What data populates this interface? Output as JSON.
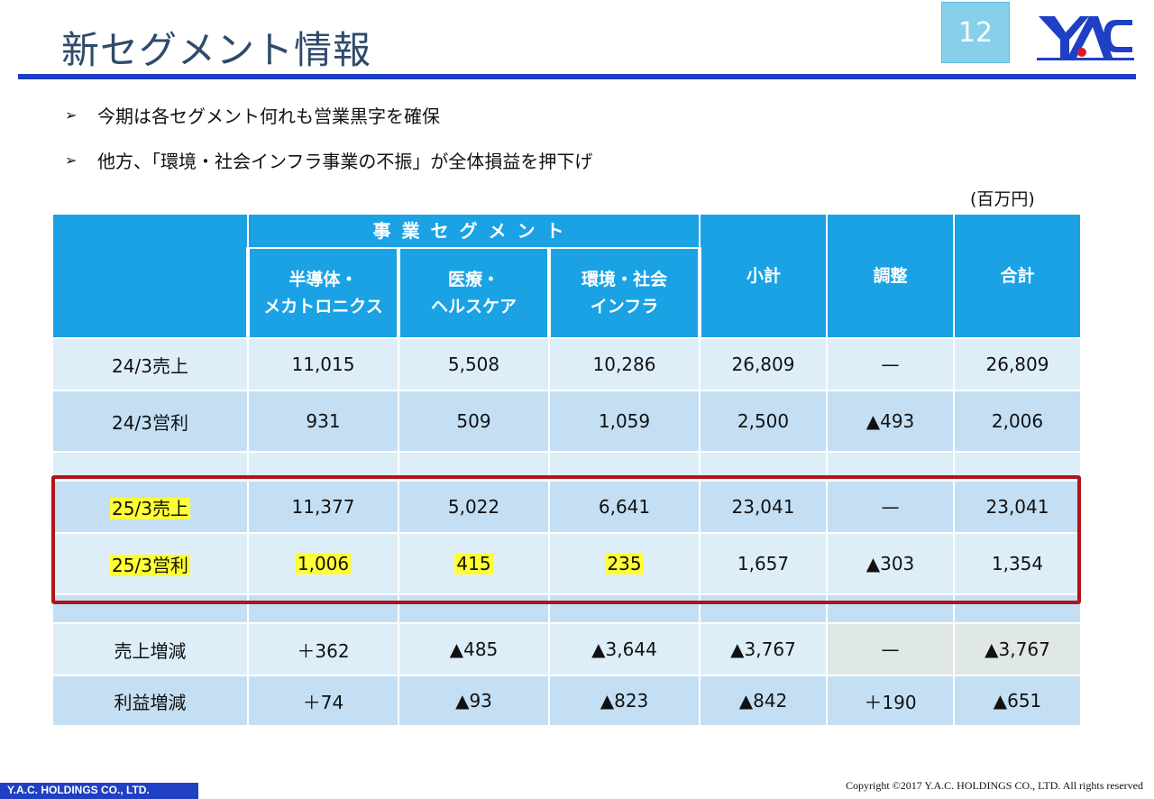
{
  "header": {
    "title": "新セグメント情報",
    "page_number": "12"
  },
  "bullets": [
    {
      "mark": "➢",
      "text": "今期は各セグメント何れも営業黒字を確保"
    },
    {
      "mark": "➢",
      "text": "他方、「環境・社会インフラ事業の不振」が全体損益を押下げ"
    }
  ],
  "table": {
    "unit": "(百万円)",
    "group_header": "事業セグメント",
    "segments": [
      {
        "line1": "半導体・",
        "line2": "メカトロニクス"
      },
      {
        "line1": "医療・",
        "line2": "ヘルスケア"
      },
      {
        "line1": "環境・社会",
        "line2": "インフラ"
      }
    ],
    "subtotal": "小計",
    "adjust": "調整",
    "total": "合計",
    "rows": {
      "sales24": {
        "label": "24/3売上",
        "c1": "11,015",
        "c2": "5,508",
        "c3": "10,286",
        "c4": "26,809",
        "c5": "—",
        "c6": "26,809"
      },
      "op24": {
        "label": "24/3営利",
        "c1": "931",
        "c2": "509",
        "c3": "1,059",
        "c4": "2,500",
        "c5": "▲493",
        "c6": "2,006"
      },
      "sales25": {
        "label": "25/3売上",
        "c1": "11,377",
        "c2": "5,022",
        "c3": "6,641",
        "c4": "23,041",
        "c5": "—",
        "c6": "23,041"
      },
      "op25": {
        "label": "25/3営利",
        "c1": "1,006",
        "c2": "415",
        "c3": "235",
        "c4": "1,657",
        "c5": "▲303",
        "c6": "1,354"
      },
      "salesdiff": {
        "label": "売上増減",
        "c1": "＋362",
        "c2": "▲485",
        "c3": "▲3,644",
        "c4": "▲3,767",
        "c5": "—",
        "c6": "▲3,767"
      },
      "profitdiff": {
        "label": "利益増減",
        "c1": "＋74",
        "c2": "▲93",
        "c3": "▲823",
        "c4": "▲842",
        "c5": "＋190",
        "c6": "▲651"
      }
    }
  },
  "footer": {
    "company": "Y.A.C. HOLDINGS CO., LTD.",
    "copyright": "Copyright ©2017 Y.A.C. HOLDINGS CO., LTD.  All rights reserved"
  },
  "colors": {
    "accent": "#1f3fc4",
    "header_cell": "#1aa2e4",
    "highlight": "#ffff33",
    "box": "#b0141c"
  }
}
